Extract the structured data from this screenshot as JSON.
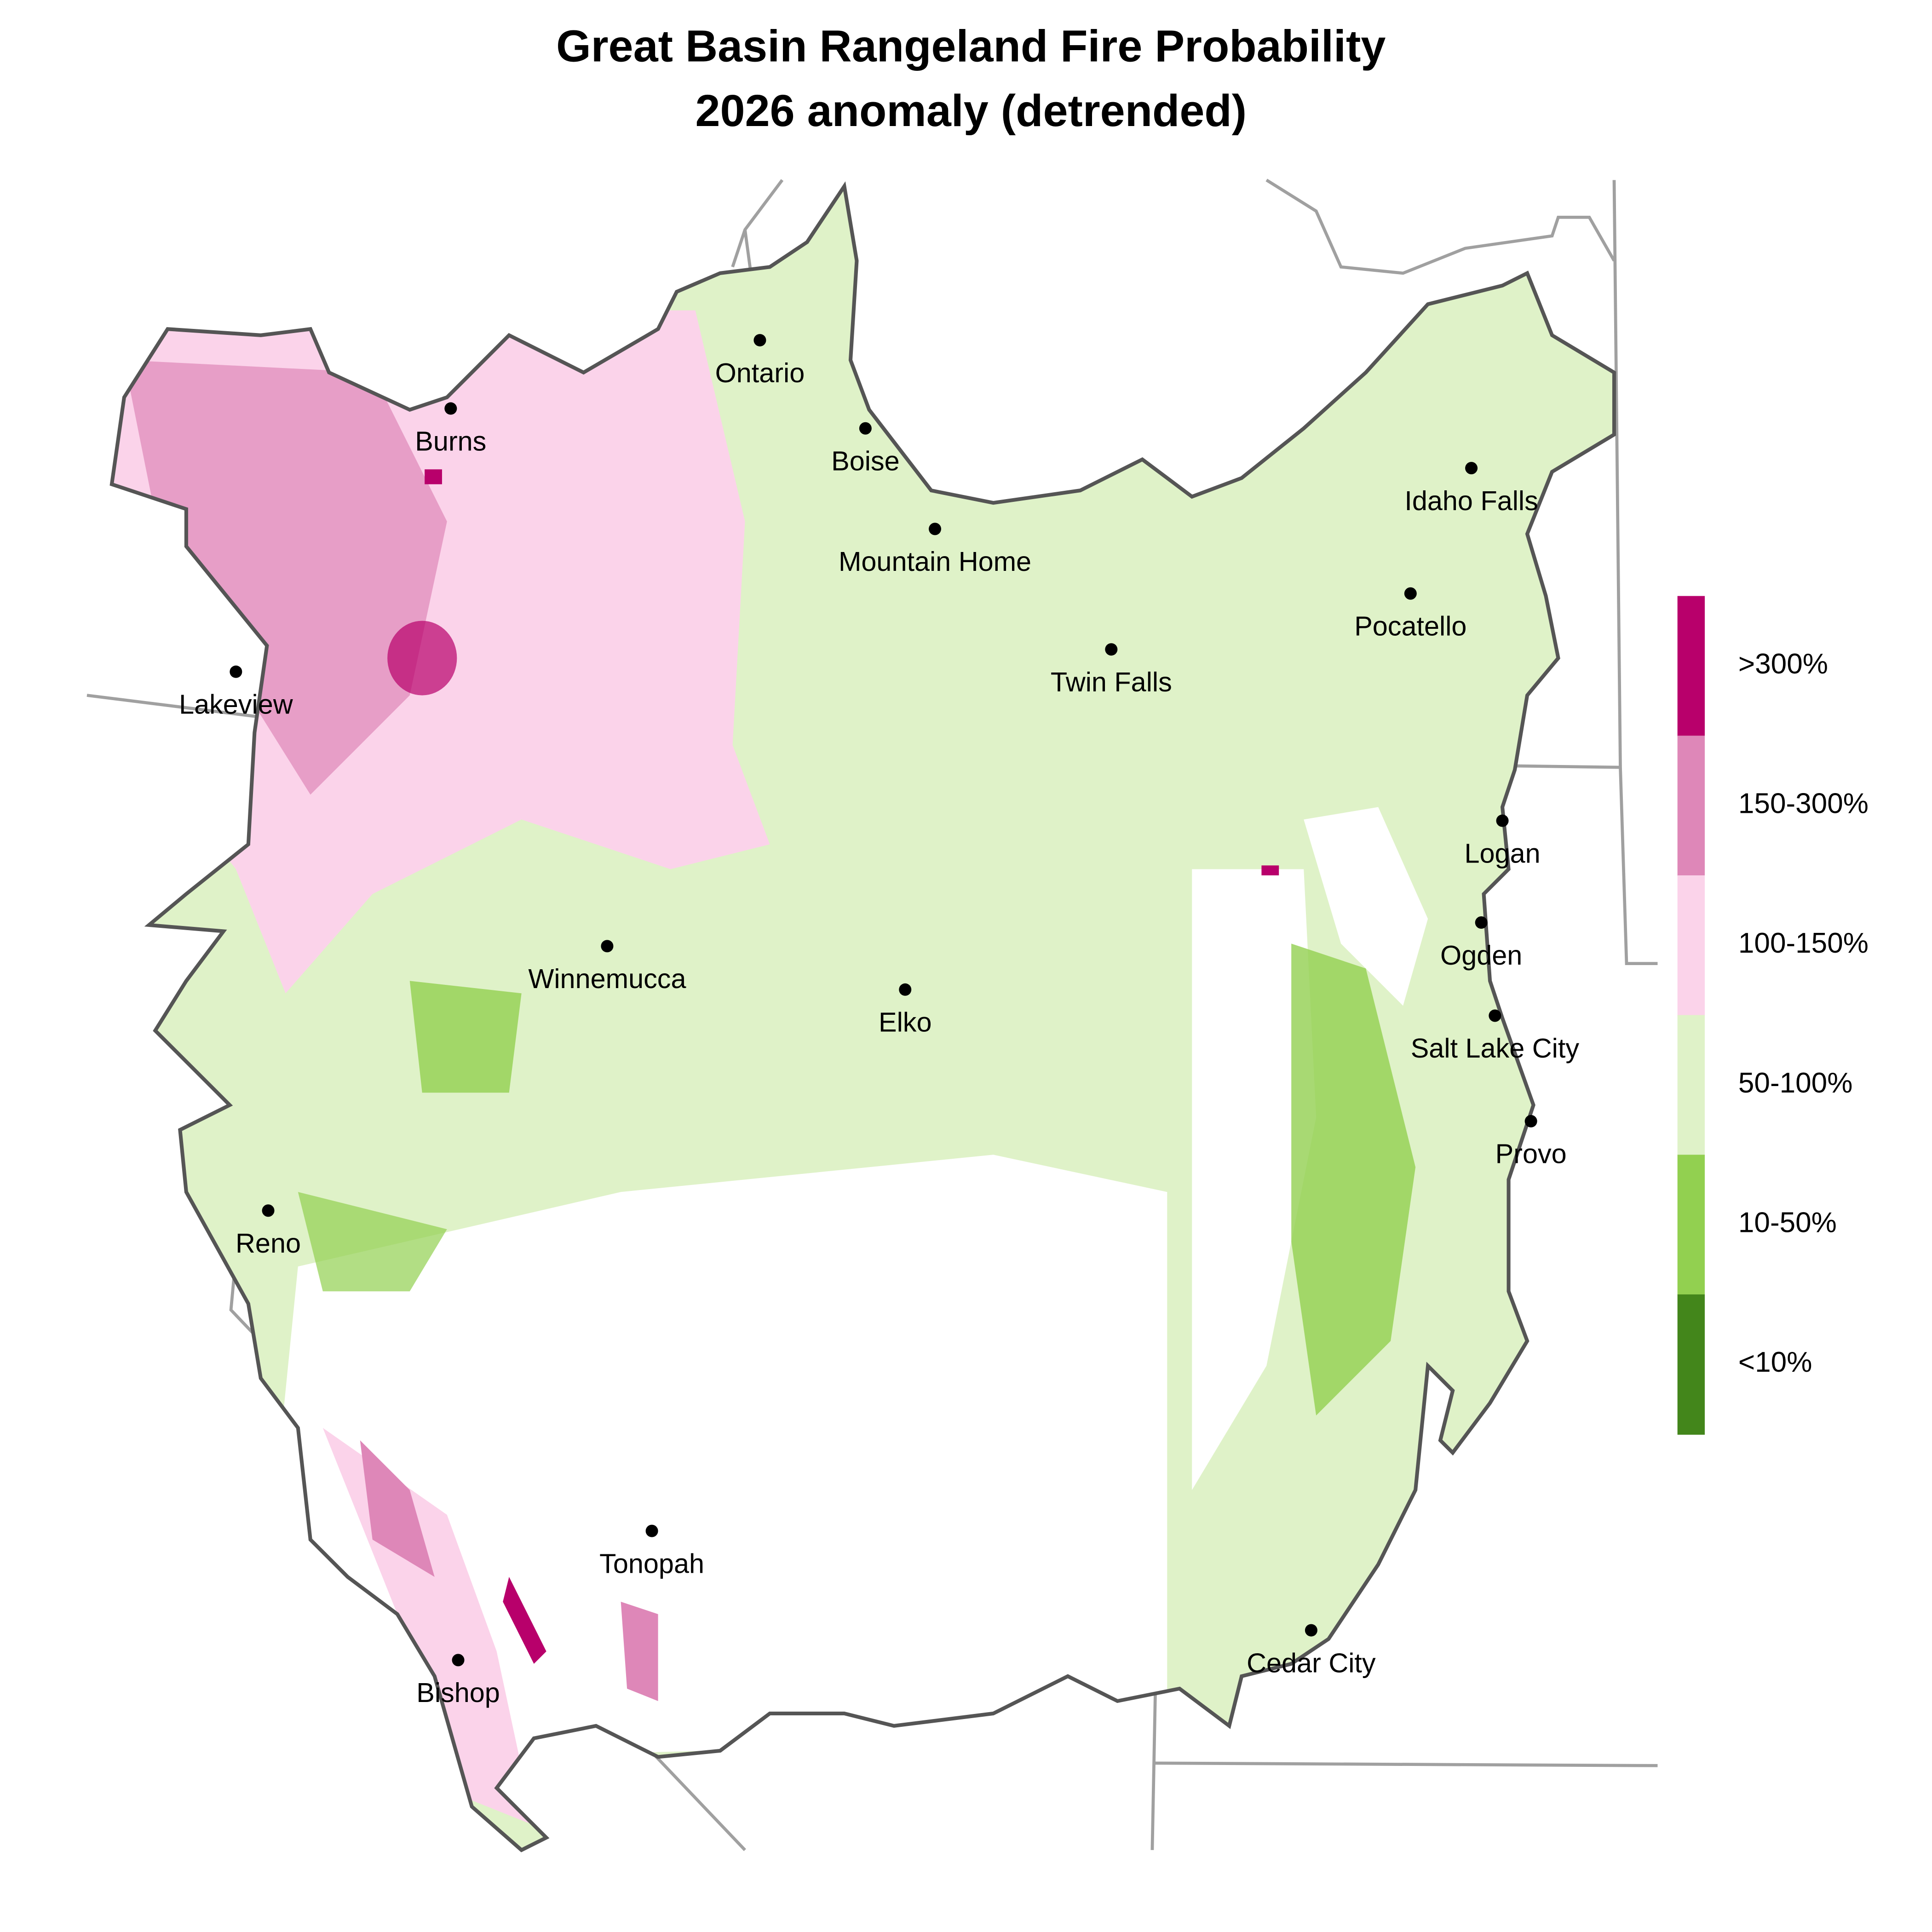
{
  "title": "Great Basin Rangeland Fire Probability",
  "subtitle": "2026 anomaly (detrended)",
  "cities": [
    "Ontario",
    "Burns",
    "Boise",
    "Idaho Falls",
    "Mountain Home",
    "Pocatello",
    "Twin Falls",
    "Lakeview",
    "Logan",
    "Ogden",
    "Winnemucca",
    "Elko",
    "Salt Lake City",
    "Provo",
    "Reno",
    "Tonopah",
    "Cedar City",
    "Bishop"
  ],
  "legend": {
    "items": [
      {
        "label": ">300%",
        "color": "#b8006b"
      },
      {
        "label": "150-300%",
        "color": "#de87b8"
      },
      {
        "label": "100-150%",
        "color": "#fbd3ea"
      },
      {
        "label": "50-100%",
        "color": "#dff2c8"
      },
      {
        "label": "10-50%",
        "color": "#92d050"
      },
      {
        "label": "<10%",
        "color": "#43861b"
      }
    ]
  }
}
